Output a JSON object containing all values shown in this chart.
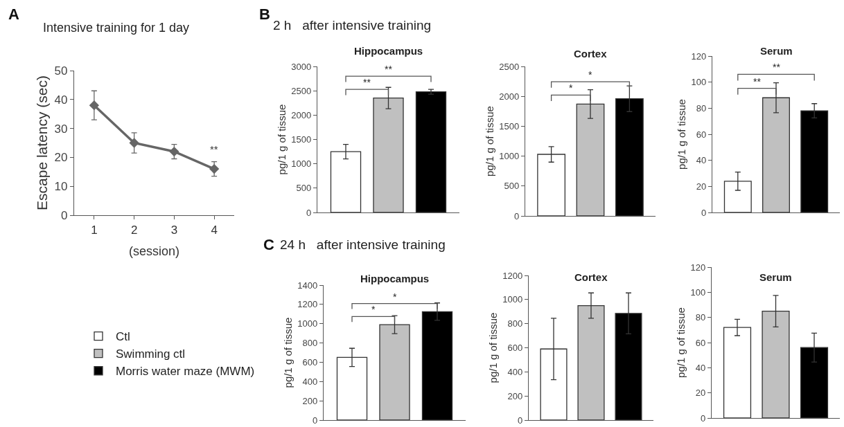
{
  "chart_data": [
    {
      "type": "line",
      "title": "Intensive training for 1 day",
      "xlabel": "(session)",
      "ylabel": "Escape latency (sec)",
      "x": [
        1,
        2,
        3,
        4
      ],
      "values": [
        38,
        25,
        22,
        16
      ],
      "errors": [
        5,
        3.5,
        2.5,
        2.5
      ],
      "color": "#666666",
      "marker": "diamond",
      "xlim": [
        0.5,
        4.5
      ],
      "xticks": [
        1,
        2,
        3,
        4
      ],
      "ylim": [
        0,
        50
      ],
      "yticks": [
        0,
        10,
        20,
        30,
        40,
        50
      ],
      "annotations": [
        "A",
        "**"
      ]
    },
    {
      "type": "bar",
      "title": "Hippocampus",
      "subtitle": "2 h   after intensive training",
      "ylabel": "pg/1 g of tissue",
      "categories": [
        null
      ],
      "legend": "left",
      "series": [
        {
          "name": "Ctl",
          "color": "#ffffff",
          "values": [
            1250
          ],
          "errors": [
            150
          ]
        },
        {
          "name": "Swimming ctl",
          "color": "#c0c0c0",
          "values": [
            2350
          ],
          "errors": [
            220
          ]
        },
        {
          "name": "Morris water maze (MWM)",
          "color": "#000000",
          "values": [
            2480
          ],
          "errors": [
            50
          ]
        }
      ],
      "ylim": [
        0,
        3000
      ],
      "yticks": [
        0,
        500,
        1000,
        1500,
        2000,
        2500,
        3000
      ],
      "annotations": [
        "B",
        "**",
        "**"
      ]
    },
    {
      "type": "bar",
      "title": "Cortex",
      "ylabel": "pg/1 g of tissue",
      "categories": [
        null
      ],
      "series": [
        {
          "color": "#ffffff",
          "values": [
            1030
          ],
          "errors": [
            130
          ]
        },
        {
          "color": "#c0c0c0",
          "values": [
            1870
          ],
          "errors": [
            240
          ]
        },
        {
          "color": "#000000",
          "values": [
            1960
          ],
          "errors": [
            215
          ]
        }
      ],
      "ylim": [
        0,
        2500
      ],
      "yticks": [
        0,
        500,
        1000,
        1500,
        2000,
        2500
      ],
      "annotations": [
        "*",
        "*"
      ]
    },
    {
      "type": "bar",
      "title": "Serum",
      "ylabel": "pg/1 g of tissue",
      "categories": [
        null
      ],
      "series": [
        {
          "color": "#ffffff",
          "values": [
            24
          ],
          "errors": [
            7
          ]
        },
        {
          "color": "#c0c0c0",
          "values": [
            88
          ],
          "errors": [
            11.5
          ]
        },
        {
          "color": "#000000",
          "values": [
            78
          ],
          "errors": [
            5.5
          ]
        }
      ],
      "ylim": [
        0,
        120
      ],
      "yticks": [
        0,
        20,
        40,
        60,
        80,
        100,
        120
      ],
      "annotations": [
        "**",
        "**"
      ]
    },
    {
      "type": "bar",
      "title": "Hippocampus",
      "subtitle": "24 h   after intensive training",
      "ylabel": "pg/1 g of tissue",
      "categories": [
        null
      ],
      "series": [
        {
          "color": "#ffffff",
          "values": [
            650
          ],
          "errors": [
            95
          ]
        },
        {
          "color": "#c0c0c0",
          "values": [
            990
          ],
          "errors": [
            93
          ]
        },
        {
          "color": "#000000",
          "values": [
            1125
          ],
          "errors": [
            90
          ]
        }
      ],
      "ylim": [
        0,
        1400
      ],
      "yticks": [
        0,
        200,
        400,
        600,
        800,
        1000,
        1200,
        1400
      ],
      "annotations": [
        "C",
        "*",
        "*"
      ]
    },
    {
      "type": "bar",
      "title": "Cortex",
      "ylabel": "pg/1 g of tissue",
      "categories": [
        null
      ],
      "series": [
        {
          "color": "#ffffff",
          "values": [
            590
          ],
          "errors": [
            255
          ]
        },
        {
          "color": "#c0c0c0",
          "values": [
            950
          ],
          "errors": [
            105
          ]
        },
        {
          "color": "#000000",
          "values": [
            885
          ],
          "errors": [
            170
          ]
        }
      ],
      "ylim": [
        0,
        1200
      ],
      "yticks": [
        0,
        200,
        400,
        600,
        800,
        1000,
        1200
      ]
    },
    {
      "type": "bar",
      "title": "Serum",
      "ylabel": "pg/1 g of tissue",
      "categories": [
        null
      ],
      "series": [
        {
          "color": "#ffffff",
          "values": [
            72
          ],
          "errors": [
            6.5
          ]
        },
        {
          "color": "#c0c0c0",
          "values": [
            85
          ],
          "errors": [
            12.5
          ]
        },
        {
          "color": "#000000",
          "values": [
            56
          ],
          "errors": [
            11.5
          ]
        }
      ],
      "ylim": [
        0,
        120
      ],
      "yticks": [
        0,
        20,
        40,
        60,
        80,
        100,
        120
      ]
    }
  ]
}
